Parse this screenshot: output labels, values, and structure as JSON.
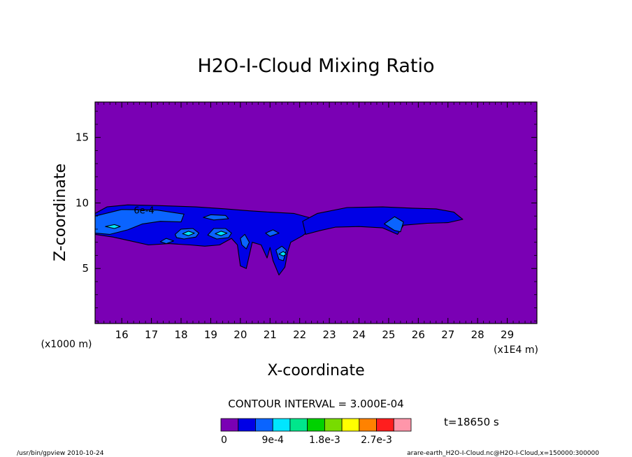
{
  "chart_data": {
    "type": "contour",
    "title": "H2O-I-Cloud Mixing Ratio",
    "xlabel": "X-coordinate",
    "ylabel": "Z-coordinate",
    "x_unit_label": "(x1E4 m)",
    "y_unit_label": "(x1000 m)",
    "xlim": [
      15.1,
      30.0
    ],
    "ylim": [
      0.8,
      17.7
    ],
    "x_ticks": [
      16,
      17,
      18,
      19,
      20,
      21,
      22,
      23,
      24,
      25,
      26,
      27,
      28,
      29
    ],
    "y_ticks": [
      5,
      10,
      15
    ],
    "contour_interval_text": "CONTOUR INTERVAL = 3.000E-04",
    "contour_interval": 0.0003,
    "time_text": "t=18650 s",
    "inline_contour_label": "6e-4",
    "inline_contour_label_pos": [
      16.75,
      9.4
    ],
    "colorbar": {
      "colors": [
        "#7a00b4",
        "#0000e6",
        "#0a64ff",
        "#00e6ff",
        "#00e68c",
        "#00d200",
        "#78dc00",
        "#ffff00",
        "#ff8200",
        "#ff1e1e",
        "#ff96aa"
      ],
      "tick_labels": [
        "0",
        "9e-4",
        "1.8e-3",
        "2.7e-3"
      ],
      "tick_values": [
        0,
        0.0009,
        0.0018,
        0.0027
      ]
    },
    "background_color": "#7a00b4",
    "regions": [
      {
        "level": 0.0003,
        "color": "#0000e6",
        "points": [
          [
            15.1,
            9.2
          ],
          [
            15.5,
            9.7
          ],
          [
            16.2,
            9.85
          ],
          [
            17.2,
            9.8
          ],
          [
            18.5,
            9.7
          ],
          [
            19.5,
            9.55
          ],
          [
            20.3,
            9.4
          ],
          [
            21.0,
            9.3
          ],
          [
            21.8,
            9.2
          ],
          [
            22.3,
            8.9
          ],
          [
            22.6,
            8.4
          ],
          [
            22.1,
            7.5
          ],
          [
            21.7,
            7.0
          ],
          [
            21.6,
            6.3
          ],
          [
            21.5,
            5.1
          ],
          [
            21.3,
            4.5
          ],
          [
            21.1,
            5.6
          ],
          [
            21.0,
            6.6
          ],
          [
            20.9,
            5.8
          ],
          [
            20.7,
            6.8
          ],
          [
            20.4,
            7.0
          ],
          [
            20.2,
            5.0
          ],
          [
            20.0,
            5.2
          ],
          [
            19.9,
            6.8
          ],
          [
            19.7,
            7.3
          ],
          [
            19.3,
            6.8
          ],
          [
            18.8,
            6.7
          ],
          [
            18.3,
            6.8
          ],
          [
            17.6,
            6.9
          ],
          [
            16.9,
            6.8
          ],
          [
            16.3,
            7.1
          ],
          [
            15.7,
            7.4
          ],
          [
            15.1,
            7.6
          ]
        ]
      },
      {
        "level": 0.0003,
        "color": "#0000e6",
        "points": [
          [
            22.1,
            8.6
          ],
          [
            22.6,
            9.2
          ],
          [
            23.6,
            9.65
          ],
          [
            24.8,
            9.7
          ],
          [
            25.8,
            9.6
          ],
          [
            26.6,
            9.55
          ],
          [
            27.2,
            9.3
          ],
          [
            27.5,
            8.75
          ],
          [
            27.0,
            8.5
          ],
          [
            26.3,
            8.45
          ],
          [
            25.5,
            8.3
          ],
          [
            25.3,
            7.6
          ],
          [
            24.8,
            8.1
          ],
          [
            24.0,
            8.2
          ],
          [
            23.2,
            8.15
          ],
          [
            22.7,
            7.9
          ],
          [
            22.2,
            7.6
          ]
        ]
      },
      {
        "level": 0.0006,
        "color": "#0a64ff",
        "points": [
          [
            15.1,
            9.0
          ],
          [
            16.0,
            9.5
          ],
          [
            17.2,
            9.45
          ],
          [
            18.1,
            9.15
          ],
          [
            18.0,
            8.55
          ],
          [
            17.3,
            8.6
          ],
          [
            16.7,
            8.4
          ],
          [
            16.2,
            7.95
          ],
          [
            15.6,
            7.6
          ],
          [
            15.1,
            7.7
          ]
        ]
      },
      {
        "level": 0.0006,
        "color": "#0a64ff",
        "points": [
          [
            17.8,
            7.6
          ],
          [
            18.0,
            8.0
          ],
          [
            18.4,
            8.05
          ],
          [
            18.6,
            7.7
          ],
          [
            18.5,
            7.4
          ],
          [
            18.1,
            7.25
          ],
          [
            17.85,
            7.35
          ]
        ]
      },
      {
        "level": 0.0006,
        "color": "#0a64ff",
        "points": [
          [
            18.9,
            7.55
          ],
          [
            19.1,
            8.05
          ],
          [
            19.5,
            8.05
          ],
          [
            19.7,
            7.7
          ],
          [
            19.6,
            7.35
          ],
          [
            19.2,
            7.25
          ]
        ]
      },
      {
        "level": 0.0006,
        "color": "#0a64ff",
        "points": [
          [
            18.75,
            8.9
          ],
          [
            19.0,
            9.1
          ],
          [
            19.5,
            9.05
          ],
          [
            19.6,
            8.8
          ],
          [
            19.1,
            8.7
          ]
        ]
      },
      {
        "level": 0.0006,
        "color": "#0a64ff",
        "points": [
          [
            17.3,
            7.05
          ],
          [
            17.5,
            7.3
          ],
          [
            17.75,
            7.1
          ],
          [
            17.5,
            6.9
          ]
        ]
      },
      {
        "level": 0.0006,
        "color": "#0a64ff",
        "points": [
          [
            20.0,
            7.3
          ],
          [
            20.15,
            7.6
          ],
          [
            20.3,
            7.0
          ],
          [
            20.2,
            6.5
          ],
          [
            20.05,
            6.8
          ]
        ]
      },
      {
        "level": 0.0006,
        "color": "#0a64ff",
        "points": [
          [
            21.2,
            6.4
          ],
          [
            21.4,
            6.7
          ],
          [
            21.55,
            6.4
          ],
          [
            21.45,
            5.6
          ],
          [
            21.3,
            5.7
          ]
        ]
      },
      {
        "level": 0.0006,
        "color": "#0a64ff",
        "points": [
          [
            20.85,
            7.7
          ],
          [
            21.1,
            7.95
          ],
          [
            21.3,
            7.7
          ],
          [
            21.0,
            7.45
          ]
        ]
      },
      {
        "level": 0.0006,
        "color": "#0a64ff",
        "points": [
          [
            24.85,
            8.4
          ],
          [
            25.2,
            8.95
          ],
          [
            25.5,
            8.55
          ],
          [
            25.4,
            7.8
          ],
          [
            25.2,
            7.9
          ]
        ]
      },
      {
        "level": 0.0009,
        "color": "#00e6ff",
        "points": [
          [
            15.45,
            8.2
          ],
          [
            15.75,
            8.35
          ],
          [
            15.95,
            8.2
          ],
          [
            15.75,
            8.05
          ]
        ]
      },
      {
        "level": 0.0009,
        "color": "#00e6ff",
        "points": [
          [
            18.05,
            7.65
          ],
          [
            18.25,
            7.85
          ],
          [
            18.45,
            7.7
          ],
          [
            18.25,
            7.5
          ]
        ]
      },
      {
        "level": 0.0009,
        "color": "#00e6ff",
        "points": [
          [
            19.15,
            7.65
          ],
          [
            19.35,
            7.85
          ],
          [
            19.55,
            7.7
          ],
          [
            19.35,
            7.5
          ]
        ]
      },
      {
        "level": 0.0009,
        "color": "#00e6ff",
        "points": [
          [
            21.3,
            6.1
          ],
          [
            21.45,
            6.3
          ],
          [
            21.55,
            6.1
          ],
          [
            21.45,
            5.95
          ]
        ]
      }
    ]
  },
  "footer": {
    "program_text": "/usr/bin/gpview  2010-10-24",
    "file_text": "arare-earth_H2O-I-Cloud.nc@H2O-I-Cloud,x=150000:300000"
  }
}
